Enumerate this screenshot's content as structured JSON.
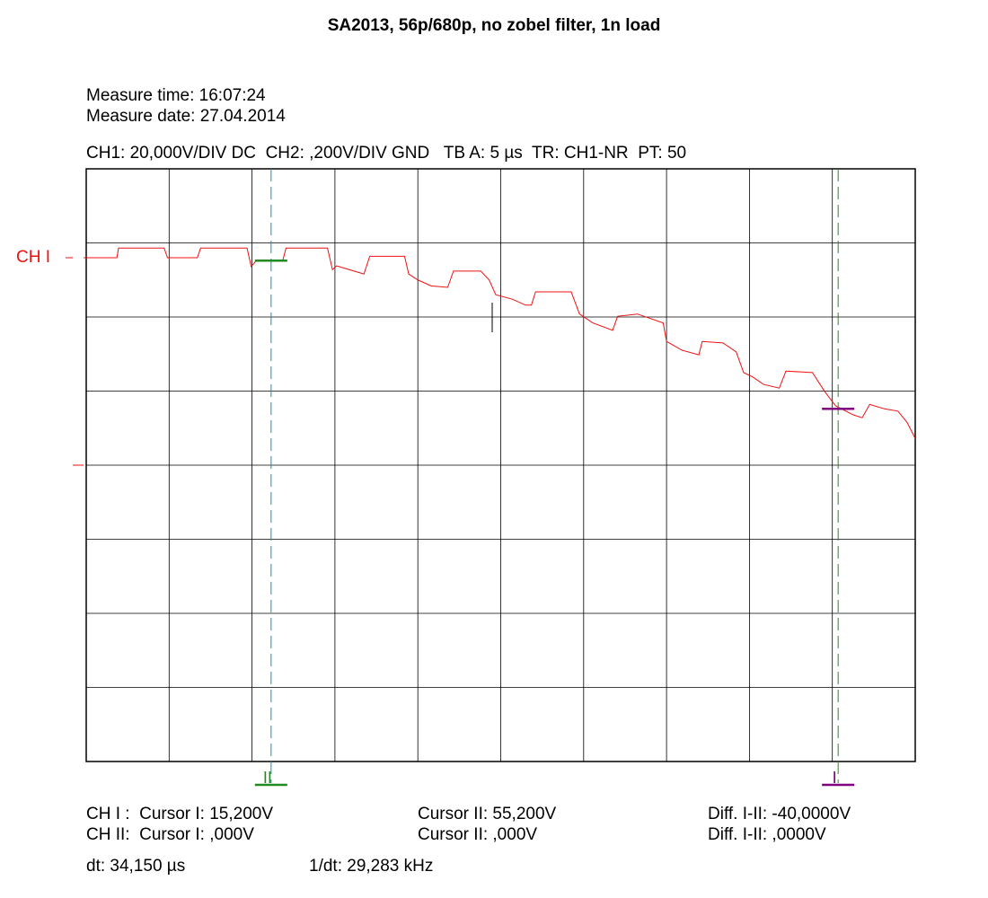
{
  "chart_data": {
    "type": "line",
    "title": "SA2013, 56p/680p, no zobel filter, 1n load",
    "info": [
      "Measure time: 16:07:24",
      "Measure date: 27.04.2014"
    ],
    "settings": "CH1: 20,000V/DIV DC  CH2: ,200V/DIV GND   TB A: 5 µs  TR: CH1-NR  PT: 50",
    "channel_label": "CH I",
    "x": [
      0,
      0.37,
      0.39,
      0.94,
      0.98,
      1.34,
      1.38,
      1.94,
      1.99,
      2.05,
      2.37,
      2.41,
      2.91,
      2.97,
      3.02,
      3.35,
      3.42,
      3.84,
      3.89,
      4.0,
      4.16,
      4.36,
      4.43,
      4.76,
      4.86,
      4.94,
      5.14,
      5.3,
      5.37,
      5.42,
      5.85,
      5.95,
      6.11,
      6.35,
      6.41,
      6.65,
      6.96,
      7.0,
      7.19,
      7.39,
      7.43,
      7.68,
      7.84,
      7.93,
      8.04,
      8.17,
      8.36,
      8.44,
      8.76,
      8.91,
      9.04,
      9.25,
      9.36,
      9.45,
      9.63,
      9.79,
      9.9,
      10
    ],
    "series": [
      {
        "color": "#ee1111",
        "values": [
          2.8,
          2.8,
          2.93,
          2.93,
          2.8,
          2.8,
          2.93,
          2.93,
          2.68,
          2.76,
          2.76,
          2.93,
          2.93,
          2.64,
          2.69,
          2.58,
          2.82,
          2.82,
          2.58,
          2.5,
          2.42,
          2.4,
          2.62,
          2.62,
          2.5,
          2.3,
          2.24,
          2.16,
          2.16,
          2.34,
          2.34,
          2.04,
          1.92,
          1.82,
          2.01,
          2.04,
          1.92,
          1.67,
          1.55,
          1.49,
          1.67,
          1.65,
          1.53,
          1.25,
          1.19,
          1.09,
          1.04,
          1.27,
          1.25,
          0.99,
          0.8,
          0.68,
          0.64,
          0.82,
          0.76,
          0.73,
          0.58,
          0.36
        ]
      }
    ],
    "xlim": [
      0,
      10
    ],
    "ylim": [
      -4,
      4
    ],
    "grid": true,
    "cursors": [
      {
        "label": "II",
        "x": 2.23,
        "y": 2.76,
        "line_color": "#1a8fa0",
        "marker_color": "#228b22"
      },
      {
        "label": "I",
        "x": 9.07,
        "y": 0.76,
        "line_color": "#228b22",
        "marker_color": "#800080"
      }
    ],
    "readouts": [
      [
        "CH I :  Cursor I: 15,200V",
        "Cursor II: 55,200V",
        "Diff. I-II: -40,0000V"
      ],
      [
        "CH II:  Cursor I: ,000V",
        "Cursor II: ,000V",
        "Diff. I-II: ,0000V"
      ]
    ],
    "footer": [
      "dt: 34,150 µs",
      "1/dt: 29,283 kHz"
    ]
  }
}
